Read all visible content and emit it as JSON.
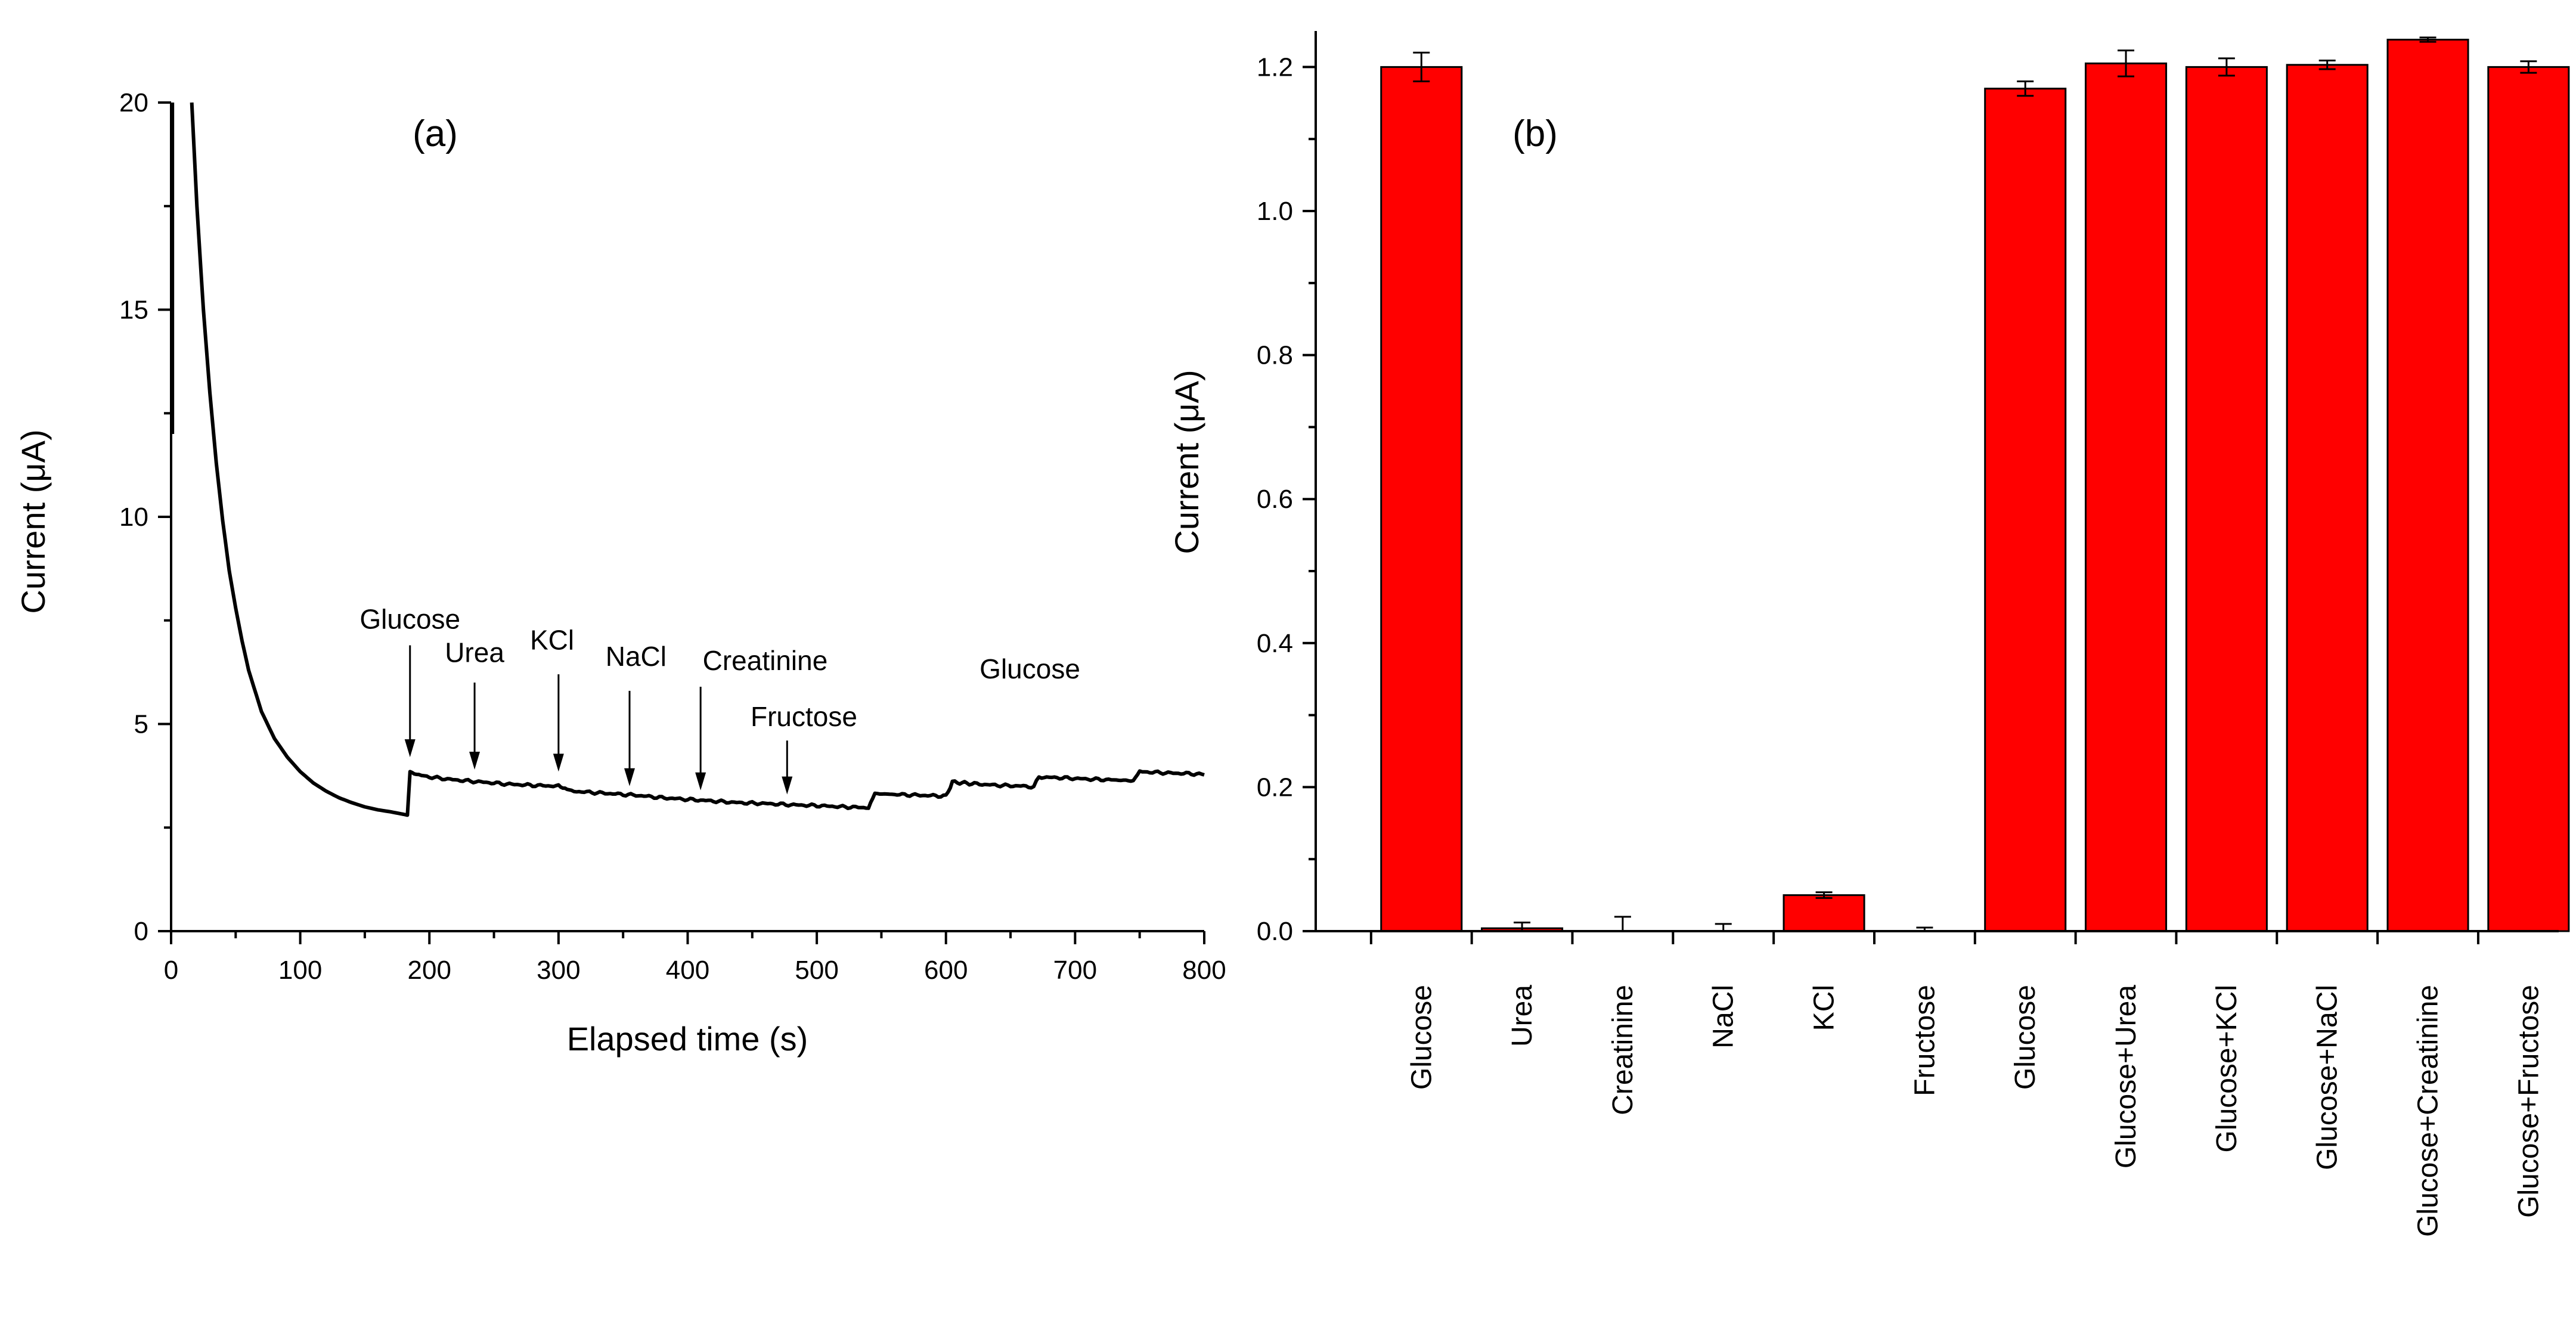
{
  "chart_data": [
    {
      "panel_label": "(a)",
      "type": "line",
      "xlabel": "Elapsed time (s)",
      "ylabel": "Current (μA)",
      "xlim": [
        0,
        800
      ],
      "ylim": [
        0,
        20
      ],
      "xticks": [
        0,
        100,
        200,
        300,
        400,
        500,
        600,
        700,
        800
      ],
      "yticks": [
        0,
        5,
        10,
        15,
        20
      ],
      "series": [
        {
          "name": "Current",
          "x": [
            16,
            20,
            25,
            30,
            35,
            40,
            45,
            50,
            55,
            60,
            70,
            80,
            90,
            100,
            110,
            120,
            130,
            140,
            150,
            160,
            170,
            180,
            183,
            185,
            190,
            200,
            220,
            240,
            260,
            280,
            300,
            305,
            310,
            340,
            360,
            380,
            400,
            420,
            440,
            460,
            480,
            500,
            520,
            540,
            545,
            560,
            580,
            600,
            605,
            620,
            640,
            660,
            668,
            672,
            690,
            710,
            730,
            745,
            750,
            770,
            790,
            800
          ],
          "y": [
            20,
            17.5,
            15.0,
            13.0,
            11.3,
            9.9,
            8.7,
            7.8,
            7.0,
            6.3,
            5.3,
            4.65,
            4.2,
            3.85,
            3.58,
            3.38,
            3.22,
            3.1,
            3.0,
            2.93,
            2.88,
            2.82,
            2.8,
            3.85,
            3.78,
            3.72,
            3.65,
            3.6,
            3.55,
            3.52,
            3.5,
            3.45,
            3.38,
            3.32,
            3.28,
            3.22,
            3.18,
            3.14,
            3.1,
            3.08,
            3.05,
            3.03,
            3.0,
            2.98,
            3.32,
            3.3,
            3.28,
            3.26,
            3.6,
            3.56,
            3.52,
            3.5,
            3.48,
            3.72,
            3.7,
            3.67,
            3.65,
            3.63,
            3.85,
            3.82,
            3.8,
            3.78
          ]
        }
      ],
      "annotations": [
        {
          "text": "Glucose",
          "arrow_x": 185,
          "arrow_y_start": 6.9,
          "arrow_y_end": 4.2,
          "label_x": 185,
          "label_y": 7.3
        },
        {
          "text": "Urea",
          "arrow_x": 235,
          "arrow_y_start": 6.0,
          "arrow_y_end": 3.9,
          "label_x": 235,
          "label_y": 6.5
        },
        {
          "text": "KCl",
          "arrow_x": 300,
          "arrow_y_start": 6.2,
          "arrow_y_end": 3.85,
          "label_x": 295,
          "label_y": 6.8
        },
        {
          "text": "NaCl",
          "arrow_x": 355,
          "arrow_y_start": 5.8,
          "arrow_y_end": 3.5,
          "label_x": 360,
          "label_y": 6.4
        },
        {
          "text": "Creatinine",
          "arrow_x": 410,
          "arrow_y_start": 5.9,
          "arrow_y_end": 3.4,
          "label_x": 460,
          "label_y": 6.3
        },
        {
          "text": "Fructose",
          "arrow_x": 477,
          "arrow_y_start": 4.6,
          "arrow_y_end": 3.3,
          "label_x": 490,
          "label_y": 4.95
        },
        {
          "text": "Glucose",
          "arrow_x": null,
          "arrow_y_start": null,
          "arrow_y_end": null,
          "label_x": 665,
          "label_y": 6.1
        }
      ]
    },
    {
      "panel_label": "(b)",
      "type": "bar",
      "xlabel": "",
      "ylabel": "Current (μA)",
      "ylim": [
        0,
        1.25
      ],
      "yticks": [
        0.0,
        0.2,
        0.4,
        0.6,
        0.8,
        1.0,
        1.2
      ],
      "ytick_labels": [
        "0.0",
        "0.2",
        "0.4",
        "0.6",
        "0.8",
        "1.0",
        "1.2"
      ],
      "bar_color": "#ff0000",
      "categories": [
        "Glucose",
        "Urea",
        "Creatinine",
        "NaCl",
        "KCl",
        "Fructose",
        "Glucose",
        "Glucose+Urea",
        "Glucose+KCl",
        "Glucose+NaCl",
        "Glucose+Creatinine",
        "Glucose+Fructose"
      ],
      "values": [
        1.2,
        0.004,
        0.0,
        0.0,
        0.05,
        0.0,
        1.17,
        1.205,
        1.2,
        1.203,
        1.238,
        1.2
      ],
      "errors": [
        0.02,
        0.008,
        0.02,
        0.01,
        0.004,
        0.005,
        0.01,
        0.018,
        0.012,
        0.006,
        0.003,
        0.008
      ]
    }
  ]
}
